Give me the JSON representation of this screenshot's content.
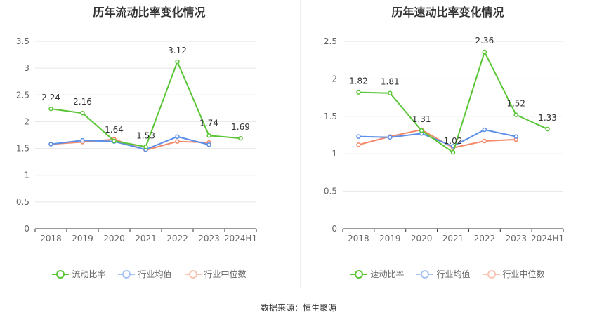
{
  "footer": {
    "source": "数据来源：恒生聚源"
  },
  "legend_colors": {
    "main": "#5ac537",
    "avg": "#5b8fe8",
    "median": "#f4896a"
  },
  "chart_data": [
    {
      "type": "line",
      "title": "历年流动比率变化情况",
      "categories": [
        "2018",
        "2019",
        "2020",
        "2021",
        "2022",
        "2023",
        "2024H1"
      ],
      "ylim": [
        0,
        3.5
      ],
      "yticks": [
        "0",
        "0.5",
        "1",
        "1.5",
        "2",
        "2.5",
        "3",
        "3.5"
      ],
      "grid": true,
      "legend_position": "bottom",
      "series": [
        {
          "name": "流动比率",
          "color": "#5ac537",
          "values": [
            2.24,
            2.16,
            1.64,
            1.53,
            3.12,
            1.74,
            1.69
          ],
          "labels": [
            "2.24",
            "2.16",
            "1.64",
            "1.53",
            "3.12",
            "1.74",
            "1.69"
          ]
        },
        {
          "name": "行业均值",
          "color": "#5b8fe8",
          "values": [
            1.58,
            1.65,
            1.63,
            1.48,
            1.72,
            1.57,
            null
          ]
        },
        {
          "name": "行业中位数",
          "color": "#f4896a",
          "values": [
            1.58,
            1.62,
            1.67,
            1.47,
            1.63,
            1.61,
            null
          ]
        }
      ]
    },
    {
      "type": "line",
      "title": "历年速动比率变化情况",
      "categories": [
        "2018",
        "2019",
        "2020",
        "2021",
        "2022",
        "2023",
        "2024H1"
      ],
      "ylim": [
        0,
        2.5
      ],
      "yticks": [
        "0",
        "0.5",
        "1",
        "1.5",
        "2",
        "2.5"
      ],
      "grid": true,
      "legend_position": "bottom",
      "series": [
        {
          "name": "速动比率",
          "color": "#5ac537",
          "values": [
            1.82,
            1.81,
            1.31,
            1.02,
            2.36,
            1.52,
            1.33
          ],
          "labels": [
            "1.82",
            "1.81",
            "1.31",
            "1.02",
            "2.36",
            "1.52",
            "1.33"
          ]
        },
        {
          "name": "行业均值",
          "color": "#5b8fe8",
          "values": [
            1.23,
            1.22,
            1.27,
            1.1,
            1.32,
            1.23,
            null
          ]
        },
        {
          "name": "行业中位数",
          "color": "#f4896a",
          "values": [
            1.12,
            1.23,
            1.32,
            1.08,
            1.17,
            1.19,
            null
          ]
        }
      ]
    }
  ]
}
